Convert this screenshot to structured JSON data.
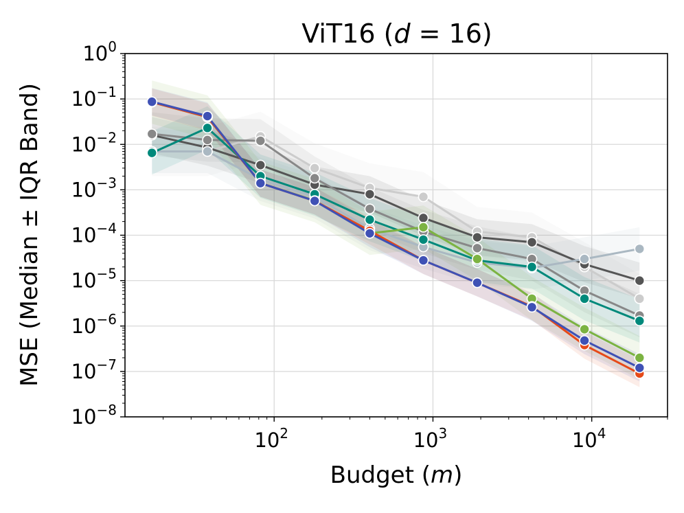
{
  "chart_data": {
    "type": "line",
    "title": "ViT16 (d = 16)",
    "title_parts": {
      "prefix": "ViT16 (",
      "var": "d",
      "suffix": " = 16)"
    },
    "xlabel": "Budget (m)",
    "xlabel_parts": {
      "prefix": "Budget (",
      "var": "m",
      "suffix": ")"
    },
    "ylabel": "MSE (Median ± IQR Band)",
    "xscale": "log",
    "yscale": "log",
    "xlim": [
      11.5,
      30000
    ],
    "ylim": [
      1e-08,
      1
    ],
    "grid": true,
    "legend": "none",
    "x_ticks": [
      {
        "base": "10",
        "exp": "2",
        "value": 100
      },
      {
        "base": "10",
        "exp": "3",
        "value": 1000
      },
      {
        "base": "10",
        "exp": "4",
        "value": 10000
      }
    ],
    "y_ticks": [
      {
        "base": "10",
        "exp": "0",
        "value": 1
      },
      {
        "base": "10",
        "exp": "−1",
        "value": 0.1
      },
      {
        "base": "10",
        "exp": "−2",
        "value": 0.01
      },
      {
        "base": "10",
        "exp": "−3",
        "value": 0.001
      },
      {
        "base": "10",
        "exp": "−4",
        "value": 0.0001
      },
      {
        "base": "10",
        "exp": "−5",
        "value": 1e-05
      },
      {
        "base": "10",
        "exp": "−6",
        "value": 1e-06
      },
      {
        "base": "10",
        "exp": "−7",
        "value": 1e-07
      },
      {
        "base": "10",
        "exp": "−8",
        "value": 1e-08
      }
    ],
    "x": [
      17,
      38,
      82,
      180,
      400,
      870,
      1900,
      4200,
      9000,
      20000
    ],
    "series": [
      {
        "name": "series-light-silver",
        "color": "#cccccc",
        "band": 3.5,
        "values": [
          0.007,
          0.007,
          0.015,
          0.003,
          0.0011,
          0.0007,
          0.00012,
          9e-05,
          2e-05,
          4e-06
        ]
      },
      {
        "name": "series-dark-gray",
        "color": "#555555",
        "band": 2.5,
        "values": [
          0.016,
          0.0085,
          0.0035,
          0.0013,
          0.0008,
          0.00024,
          9e-05,
          7e-05,
          2.3e-05,
          1e-05
        ]
      },
      {
        "name": "series-gray",
        "color": "#888888",
        "band": 3,
        "values": [
          0.017,
          0.0125,
          0.012,
          0.0018,
          0.00038,
          0.00012,
          5.2e-05,
          3e-05,
          6e-06,
          1.7e-06
        ]
      },
      {
        "name": "series-blue-gray",
        "color": "#aab8c2",
        "band": 3,
        "values": [
          0.007,
          0.007,
          0.0017,
          0.0007,
          0.00014,
          5.5e-05,
          2.5e-05,
          1.9e-05,
          3e-05,
          5e-05
        ]
      },
      {
        "name": "series-teal",
        "color": "#00897b",
        "band": 3,
        "values": [
          0.0065,
          0.023,
          0.002,
          0.0008,
          0.00022,
          8e-05,
          2.8e-05,
          2e-05,
          4e-06,
          1.3e-06
        ]
      },
      {
        "name": "series-green",
        "color": "#7cb342",
        "band": 3,
        "values": [
          0.085,
          0.04,
          0.0014,
          0.00058,
          0.00011,
          0.00015,
          3e-05,
          4e-06,
          8.5e-07,
          2e-07
        ]
      },
      {
        "name": "series-orange",
        "color": "#e64a19",
        "band": 2,
        "values": [
          0.085,
          0.04,
          0.0014,
          0.00057,
          0.000125,
          2.8e-05,
          9e-06,
          2.7e-06,
          3.8e-07,
          9e-08
        ]
      },
      {
        "name": "series-indigo",
        "color": "#3f51b5",
        "band": 2,
        "values": [
          0.087,
          0.042,
          0.0014,
          0.00057,
          0.00011,
          2.8e-05,
          9e-06,
          2.6e-06,
          4.8e-07,
          1.2e-07
        ]
      }
    ]
  }
}
